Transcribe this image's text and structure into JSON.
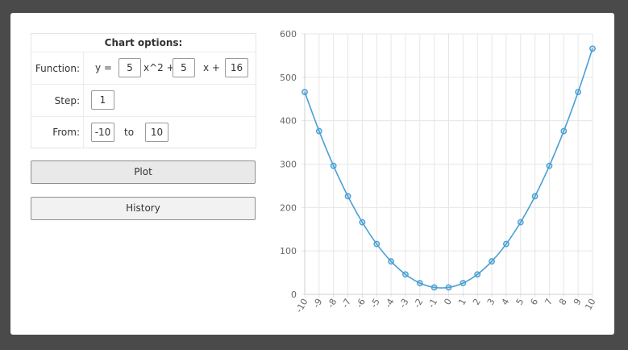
{
  "options": {
    "title": "Chart options:",
    "function_label": "Function:",
    "y_equals": "y =",
    "a_value": "5",
    "x2_plus": "x^2 +",
    "b_value": "5",
    "x_plus": "x +",
    "c_value": "16",
    "step_label": "Step:",
    "step_value": "1",
    "from_label": "From:",
    "from_value": "-10",
    "to_label": "to",
    "to_value": "10"
  },
  "buttons": {
    "plot_label": "Plot",
    "history_label": "History"
  },
  "colors": {
    "line": "#4a9fd4",
    "grid": "#e6e6e6",
    "axis": "#cfcfcf"
  },
  "chart_data": {
    "type": "line",
    "x": [
      -10,
      -9,
      -8,
      -7,
      -6,
      -5,
      -4,
      -3,
      -2,
      -1,
      0,
      1,
      2,
      3,
      4,
      5,
      6,
      7,
      8,
      9,
      10
    ],
    "series": [
      {
        "values": [
          466,
          376,
          296,
          226,
          166,
          116,
          76,
          46,
          26,
          16,
          16,
          26,
          46,
          76,
          116,
          166,
          226,
          296,
          376,
          466,
          566
        ]
      }
    ],
    "ylim": [
      0,
      600
    ],
    "yticks": [
      0,
      100,
      200,
      300,
      400,
      500,
      600
    ],
    "xtick_labels": [
      "-10",
      "-9",
      "-8",
      "-7",
      "-6",
      "-5",
      "-4",
      "-3",
      "-2",
      "-1",
      "0",
      "1",
      "2",
      "3",
      "4",
      "5",
      "6",
      "7",
      "8",
      "9",
      "10"
    ],
    "grid": true,
    "marker": "circle"
  }
}
